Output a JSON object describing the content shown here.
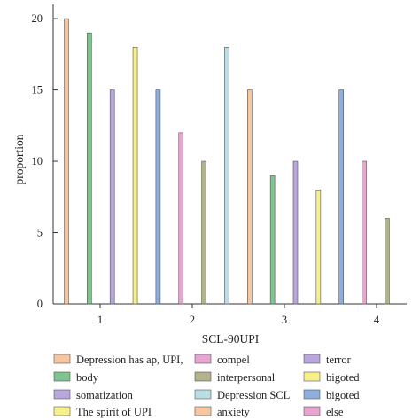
{
  "chart_data": {
    "type": "bar",
    "xlabel": "SCL-90UPI",
    "ylabel": "proportion",
    "ylim": [
      0,
      21
    ],
    "yticks": [
      0,
      5,
      10,
      15,
      20
    ],
    "categories": [
      "1",
      "2",
      "3",
      "4"
    ],
    "grid": false,
    "legend_position": "bottom",
    "bars": [
      {
        "series": "Depression has ap, UPI,",
        "category": "1",
        "value": 20,
        "color": "#f4c7a0"
      },
      {
        "series": "body",
        "category": "1",
        "value": 19,
        "color": "#7fc48d"
      },
      {
        "series": "somatization",
        "category": "1",
        "value": 15,
        "color": "#b8a6dc"
      },
      {
        "series": "The spirit of UPI",
        "category": "1",
        "value": 18,
        "color": "#f7f08a"
      },
      {
        "series": "bigoted",
        "category": "1",
        "value": 15,
        "color": "#8eaee0"
      },
      {
        "series": "compel",
        "category": "2",
        "value": 12,
        "color": "#e7a6d2"
      },
      {
        "series": "interpersonal",
        "category": "2",
        "value": 10,
        "color": "#b2b38a"
      },
      {
        "series": "Depression SCL",
        "category": "2",
        "value": 18,
        "color": "#b8dde4"
      },
      {
        "series": "anxiety",
        "category": "2",
        "value": 15,
        "color": "#f4c7a0"
      },
      {
        "series": "body",
        "category": "3",
        "value": 9,
        "color": "#7fc48d"
      },
      {
        "series": "terror",
        "category": "3",
        "value": 10,
        "color": "#b8a6dc"
      },
      {
        "series": "bigoted",
        "category": "3",
        "value": 8,
        "color": "#f7f08a"
      },
      {
        "series": "bigoted",
        "category": "4",
        "value": 15,
        "color": "#8eaee0"
      },
      {
        "series": "else",
        "category": "4",
        "value": 10,
        "color": "#e7a6d2"
      },
      {
        "series": "interpersonal",
        "category": "4",
        "value": 6,
        "color": "#b2b38a"
      }
    ],
    "legend": [
      {
        "label": "Depression has ap, UPI,",
        "color": "#f4c7a0"
      },
      {
        "label": "compel",
        "color": "#e7a6d2"
      },
      {
        "label": "terror",
        "color": "#b8a6dc"
      },
      {
        "label": "body",
        "color": "#7fc48d"
      },
      {
        "label": "interpersonal",
        "color": "#b2b38a"
      },
      {
        "label": "bigoted",
        "color": "#f7f08a"
      },
      {
        "label": "somatization",
        "color": "#b8a6dc"
      },
      {
        "label": "Depression SCL",
        "color": "#b8dde4"
      },
      {
        "label": "bigoted",
        "color": "#8eaee0"
      },
      {
        "label": "The spirit of UPI",
        "color": "#f7f08a"
      },
      {
        "label": "anxiety",
        "color": "#f4c7a0"
      },
      {
        "label": "else",
        "color": "#e7a6d2"
      }
    ]
  }
}
